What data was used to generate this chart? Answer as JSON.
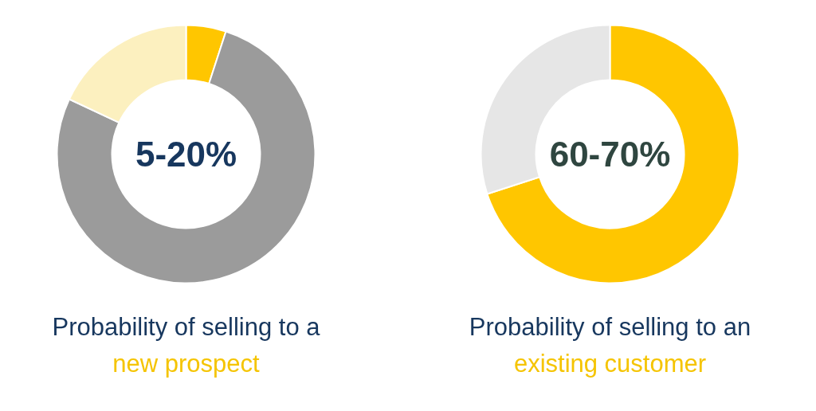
{
  "chart_data": [
    {
      "type": "donut",
      "title": "Probability of selling to a",
      "subtitle": "new prospect",
      "categories": [
        null,
        null,
        null
      ],
      "values": [
        5,
        77,
        18
      ],
      "colors": [
        "#ffc600",
        "#9b9b9b",
        "#fcf0bf"
      ],
      "annotations": [
        "5-20%"
      ]
    },
    {
      "type": "donut",
      "title": "Probability of selling to an",
      "subtitle": "existing customer",
      "categories": [
        null,
        null
      ],
      "values": [
        70,
        30
      ],
      "colors": [
        "#ffc600",
        "#e6e6e6"
      ],
      "annotations": [
        "60-70%"
      ]
    }
  ]
}
